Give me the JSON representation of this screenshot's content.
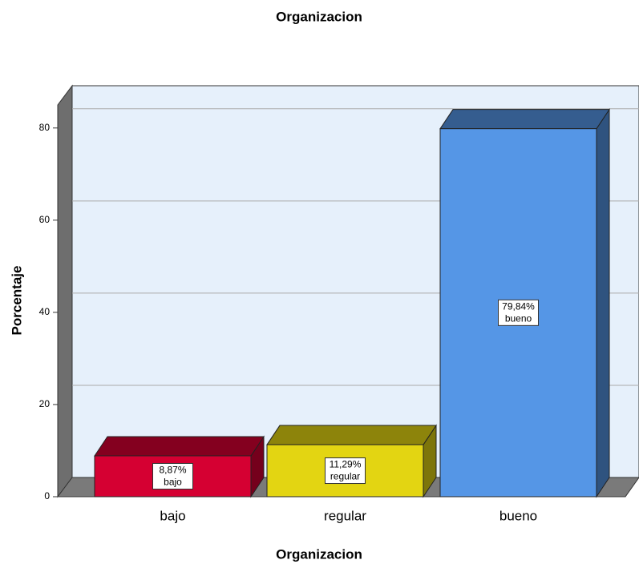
{
  "chart_data": {
    "type": "bar3d",
    "title": "Organizacion",
    "x_label": "Organizacion",
    "y_label": "Porcentaje",
    "categories": [
      "bajo",
      "regular",
      "bueno"
    ],
    "values": [
      8.87,
      11.29,
      79.84
    ],
    "value_labels": [
      "8,87%",
      "11,29%",
      "79,84%"
    ],
    "colors": [
      "#d50032",
      "#e3d512",
      "#5596e6"
    ],
    "ylim": [
      0,
      85
    ],
    "yticks": [
      0,
      20,
      40,
      60,
      80
    ],
    "grid": true
  }
}
